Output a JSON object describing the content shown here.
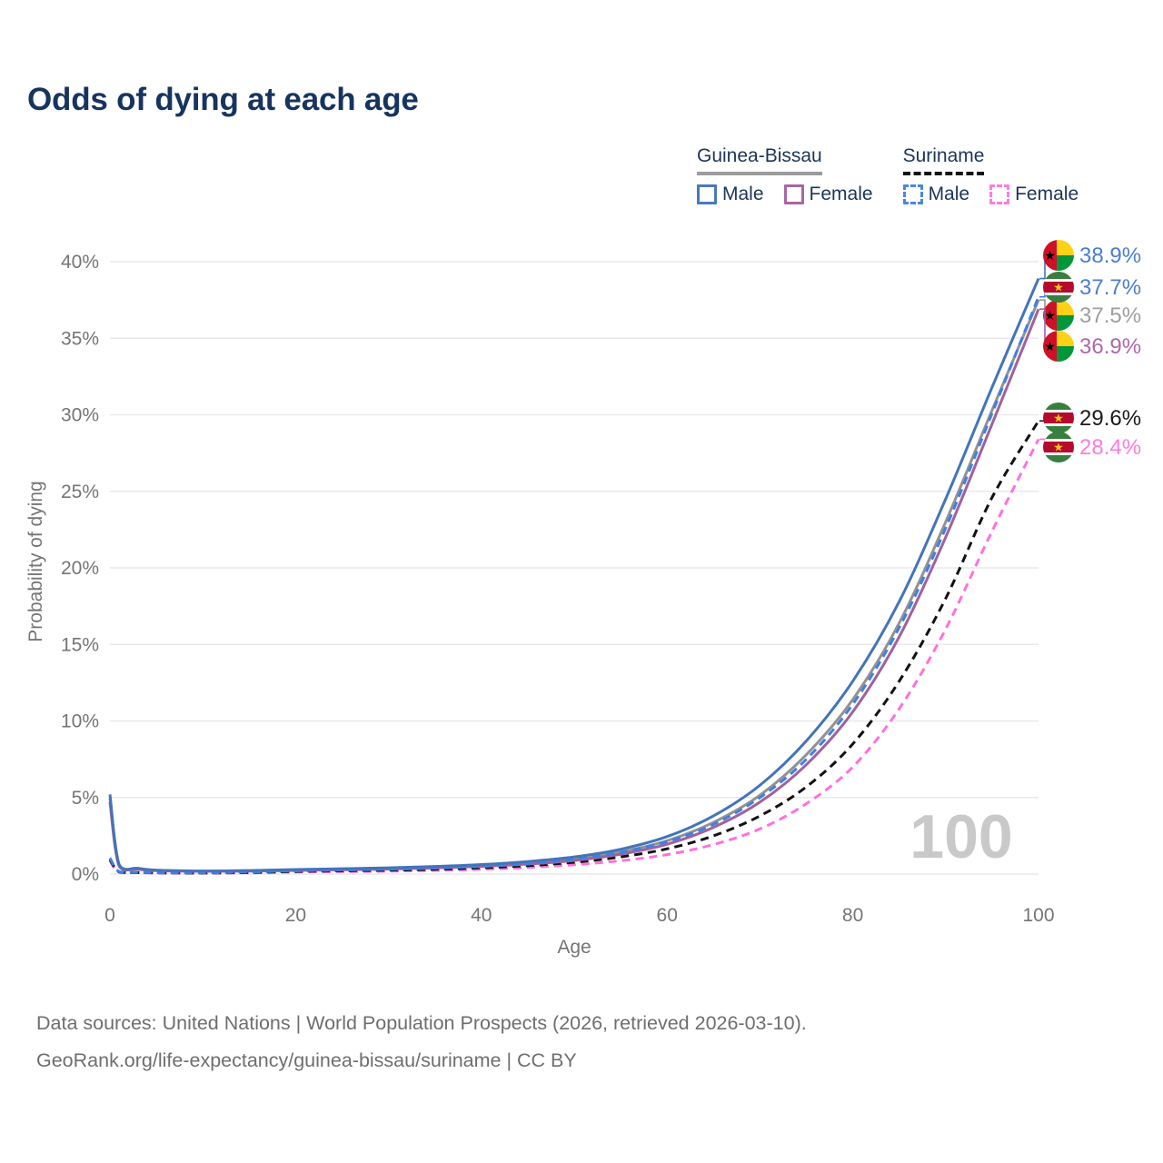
{
  "title": "Odds of dying at each age",
  "legend": {
    "groups": [
      {
        "label": "Guinea-Bissau",
        "style": "solid",
        "color": "#9b9b9b"
      },
      {
        "label": "Suriname",
        "style": "dashed",
        "color": "#141414"
      }
    ],
    "items": [
      {
        "label": "Male",
        "style": "solid",
        "color": "#4879bd"
      },
      {
        "label": "Female",
        "style": "solid",
        "color": "#a966a4"
      },
      {
        "label": "Male",
        "style": "dashed",
        "color": "#4a86e8"
      },
      {
        "label": "Female",
        "style": "dashed",
        "color": "#ff7ce0"
      }
    ]
  },
  "chart_data": {
    "type": "line",
    "title": "Odds of dying at each age",
    "xlabel": "Age",
    "ylabel": "Probability of dying",
    "xlim": [
      0,
      100
    ],
    "ylim_percent": [
      0,
      40
    ],
    "x_ticks": [
      0,
      20,
      40,
      60,
      80,
      100
    ],
    "y_ticks_percent": [
      0,
      5,
      10,
      15,
      20,
      25,
      30,
      35,
      40
    ],
    "grid": "horizontal",
    "watermark": "100",
    "ages": [
      0,
      1,
      3,
      5,
      10,
      15,
      20,
      25,
      30,
      35,
      40,
      45,
      50,
      55,
      60,
      65,
      70,
      75,
      80,
      85,
      90,
      95,
      100
    ],
    "series": [
      {
        "id": "sur-female",
        "name": "Suriname Female",
        "style": "dashed",
        "color": "#ff70dd",
        "label_color": "#ff7ce0",
        "flag": "suriname-flag-icon",
        "end_label": "28.4%",
        "values": [
          0.85,
          0.12,
          0.09,
          0.07,
          0.06,
          0.08,
          0.13,
          0.16,
          0.19,
          0.24,
          0.31,
          0.43,
          0.61,
          0.87,
          1.27,
          1.93,
          2.95,
          4.6,
          7.0,
          10.8,
          16.0,
          22.4,
          28.4
        ]
      },
      {
        "id": "sur-total",
        "name": "Suriname",
        "style": "dashed",
        "color": "#121212",
        "label_color": "#1a1a1a",
        "flag": "suriname-flag-icon",
        "end_label": "29.6%",
        "values": [
          0.95,
          0.14,
          0.1,
          0.08,
          0.07,
          0.1,
          0.17,
          0.21,
          0.25,
          0.31,
          0.41,
          0.55,
          0.77,
          1.12,
          1.65,
          2.5,
          3.8,
          5.7,
          8.5,
          12.6,
          18.0,
          24.6,
          29.6
        ]
      },
      {
        "id": "gb-total",
        "name": "Guinea-Bissau",
        "style": "solid",
        "color": "#929292",
        "label_color": "#9e9e9e",
        "flag": "guinea-bissau-flag-icon",
        "end_label": "37.5%",
        "values": [
          4.95,
          0.56,
          0.34,
          0.24,
          0.19,
          0.21,
          0.27,
          0.31,
          0.37,
          0.45,
          0.56,
          0.73,
          1.0,
          1.45,
          2.18,
          3.38,
          5.15,
          7.8,
          11.4,
          16.4,
          23.0,
          30.3,
          37.5
        ]
      },
      {
        "id": "gb-female",
        "name": "Guinea-Bissau Female",
        "style": "solid",
        "color": "#9f629d",
        "label_color": "#ad68ab",
        "flag": "guinea-bissau-flag-icon",
        "end_label": "36.9%",
        "values": [
          4.7,
          0.5,
          0.31,
          0.22,
          0.18,
          0.19,
          0.24,
          0.28,
          0.33,
          0.4,
          0.5,
          0.65,
          0.89,
          1.3,
          1.95,
          3.05,
          4.7,
          7.15,
          10.6,
          15.5,
          22.0,
          29.4,
          36.9
        ]
      },
      {
        "id": "sur-male",
        "name": "Suriname Male",
        "style": "dashed",
        "color": "#3f7fe8",
        "label_color": "#4c7dcd",
        "flag": "suriname-flag-icon",
        "end_label": "37.7%",
        "values": [
          1.05,
          0.16,
          0.11,
          0.09,
          0.08,
          0.13,
          0.21,
          0.26,
          0.31,
          0.39,
          0.51,
          0.69,
          0.97,
          1.42,
          2.12,
          3.25,
          5.0,
          7.5,
          11.1,
          16.1,
          22.6,
          30.1,
          37.7
        ]
      },
      {
        "id": "gb-male",
        "name": "Guinea-Bissau Male",
        "style": "solid",
        "color": "#4374b9",
        "label_color": "#4c7dcd",
        "flag": "guinea-bissau-flag-icon",
        "end_label": "38.9%",
        "values": [
          5.2,
          0.62,
          0.38,
          0.26,
          0.2,
          0.23,
          0.3,
          0.35,
          0.41,
          0.5,
          0.62,
          0.82,
          1.12,
          1.62,
          2.45,
          3.8,
          5.8,
          8.7,
          12.6,
          17.8,
          24.5,
          31.8,
          38.9
        ]
      }
    ]
  },
  "footer": {
    "line1": "Data sources: United Nations | World Population Prospects (2026, retrieved 2026-03-10).",
    "line2": "GeoRank.org/life-expectancy/guinea-bissau/suriname | CC BY"
  }
}
